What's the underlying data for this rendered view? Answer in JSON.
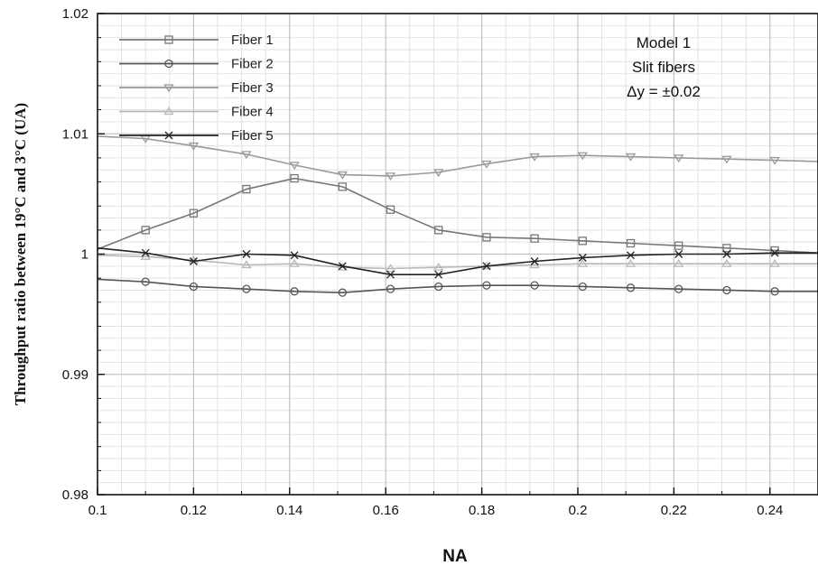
{
  "chart_data": {
    "type": "line",
    "title": "",
    "xlabel": "NA",
    "ylabel": "Throughput ratio between 19°C and 3°C (UA)",
    "xlim": [
      0.1,
      0.25
    ],
    "ylim": [
      0.98,
      1.02
    ],
    "x_ticks": [
      0.1,
      0.12,
      0.14,
      0.16,
      0.18,
      0.2,
      0.22,
      0.24
    ],
    "x_tick_labels": [
      "0.1",
      "0.12",
      "0.14",
      "0.16",
      "0.18",
      "0.2",
      "0.22",
      "0.24"
    ],
    "y_ticks": [
      0.98,
      0.99,
      1.0,
      1.01,
      1.02
    ],
    "y_tick_labels": [
      "0.98",
      "0.99",
      "1",
      "1.01",
      "1.02"
    ],
    "grid": true,
    "legend_position": "top-left",
    "annotations": [
      "Model 1",
      "Slit fibers",
      "Δy = ±0.02"
    ],
    "x": [
      0.1,
      0.11,
      0.12,
      0.131,
      0.141,
      0.151,
      0.161,
      0.171,
      0.181,
      0.191,
      0.201,
      0.211,
      0.221,
      0.231,
      0.241,
      0.25
    ],
    "series": [
      {
        "name": "Fiber 1",
        "marker": "square",
        "color": "#777777",
        "values": [
          1.0004,
          1.002,
          1.0034,
          1.0054,
          1.0063,
          1.0056,
          1.0037,
          1.002,
          1.0014,
          1.0013,
          1.0011,
          1.0009,
          1.0007,
          1.0005,
          1.0003,
          1.0001
        ]
      },
      {
        "name": "Fiber 2",
        "marker": "circle",
        "color": "#555555",
        "values": [
          0.9979,
          0.9977,
          0.9973,
          0.9971,
          0.9969,
          0.9968,
          0.9971,
          0.9973,
          0.9974,
          0.9974,
          0.9973,
          0.9972,
          0.9971,
          0.997,
          0.9969,
          0.9969
        ]
      },
      {
        "name": "Fiber 3",
        "marker": "triangle-down",
        "color": "#9a9a9a",
        "values": [
          1.0098,
          1.0096,
          1.009,
          1.0083,
          1.0074,
          1.0066,
          1.0065,
          1.0068,
          1.0075,
          1.0081,
          1.0082,
          1.0081,
          1.008,
          1.0079,
          1.0078,
          1.0077
        ]
      },
      {
        "name": "Fiber 4",
        "marker": "triangle-up",
        "color": "#b8b8b8",
        "values": [
          0.9999,
          0.9998,
          0.9995,
          0.9991,
          0.9992,
          0.9989,
          0.9988,
          0.9989,
          0.999,
          0.9991,
          0.9992,
          0.9992,
          0.9992,
          0.9992,
          0.9992,
          0.9992
        ]
      },
      {
        "name": "Fiber 5",
        "marker": "cross",
        "color": "#222222",
        "values": [
          1.0005,
          1.0001,
          0.9994,
          1.0,
          0.9999,
          0.999,
          0.9983,
          0.9983,
          0.999,
          0.9994,
          0.9997,
          0.9999,
          1.0,
          1.0,
          1.0001,
          1.0001
        ]
      }
    ]
  }
}
